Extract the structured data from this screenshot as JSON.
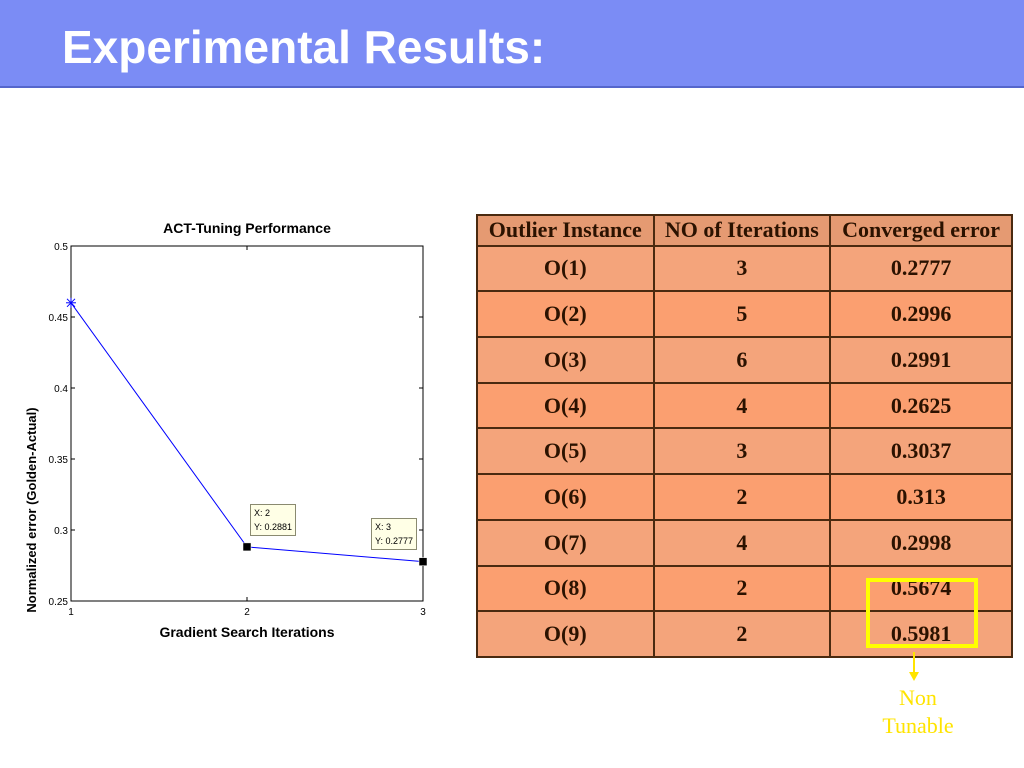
{
  "slide": {
    "title": "Experimental Results:"
  },
  "chart_data": {
    "type": "line",
    "title": "ACT-Tuning Performance",
    "xlabel": "Gradient Search Iterations",
    "ylabel": "Normalized error (Golden-Actual)",
    "xlim": [
      1,
      3
    ],
    "ylim": [
      0.25,
      0.5
    ],
    "xticks": [
      "1",
      "2",
      "3"
    ],
    "yticks": [
      "0.25",
      "0.3",
      "0.35",
      "0.4",
      "0.45",
      "0.5"
    ],
    "x": [
      1,
      2,
      3
    ],
    "y": [
      0.46,
      0.2881,
      0.2777
    ],
    "line_color": "#0000ff",
    "grid": false,
    "datatips": [
      {
        "x_text": "X: 2",
        "y_text": "Y: 0.2881"
      },
      {
        "x_text": "X: 3",
        "y_text": "Y: 0.2777"
      }
    ]
  },
  "table": {
    "headers": [
      "Outlier Instance",
      "NO of Iterations",
      "Converged error"
    ],
    "rows": [
      [
        "O(1)",
        "3",
        "0.2777"
      ],
      [
        "O(2)",
        "5",
        "0.2996"
      ],
      [
        "O(3)",
        "6",
        "0.2991"
      ],
      [
        "O(4)",
        "4",
        "0.2625"
      ],
      [
        "O(5)",
        "3",
        "0.3037"
      ],
      [
        "O(6)",
        "2",
        "0.313"
      ],
      [
        "O(7)",
        "4",
        "0.2998"
      ],
      [
        "O(8)",
        "2",
        "0.5674"
      ],
      [
        "O(9)",
        "2",
        "0.5981"
      ]
    ]
  },
  "annotation": {
    "line1": "Non",
    "line2": "Tunable",
    "color": "#ffe400"
  }
}
